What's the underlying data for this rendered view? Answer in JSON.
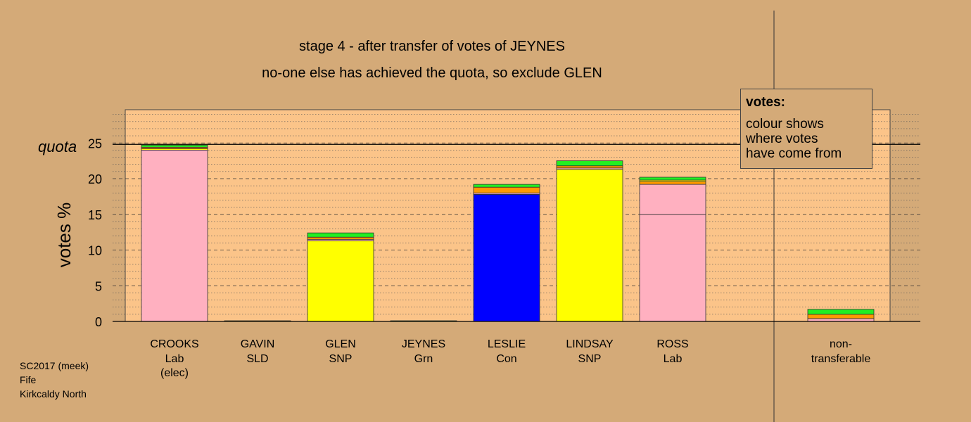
{
  "chart_data": {
    "type": "bar",
    "stacked": true,
    "title": "stage 4 - after transfer of votes of JEYNES",
    "subtitle": "no-one else has achieved the quota, so exclude GLEN",
    "ylabel": "votes %",
    "ylim": [
      0,
      30
    ],
    "yticks": [
      0,
      5,
      10,
      15,
      20,
      25
    ],
    "quota": 24.8,
    "quota_label": "quota",
    "candidates": [
      {
        "name": "CROOKS",
        "party": "Lab",
        "note": "(elec)",
        "segments": [
          {
            "color": "#ffb0c0",
            "value": 24.0
          },
          {
            "color": "#ffff00",
            "value": 0.2
          },
          {
            "color": "#ff9900",
            "value": 0.2
          },
          {
            "color": "#22ee22",
            "value": 0.3
          }
        ]
      },
      {
        "name": "GAVIN",
        "party": "SLD",
        "note": "",
        "segments": [
          {
            "color": "#ffff00",
            "value": 0.1
          }
        ]
      },
      {
        "name": "GLEN",
        "party": "SNP",
        "note": "",
        "segments": [
          {
            "color": "#ffff00",
            "value": 11.3
          },
          {
            "color": "#ffb0c0",
            "value": 0.2
          },
          {
            "color": "#ff9900",
            "value": 0.3
          },
          {
            "color": "#22ee22",
            "value": 0.6
          }
        ]
      },
      {
        "name": "JEYNES",
        "party": "Grn",
        "note": "",
        "segments": [
          {
            "color": "#22ee22",
            "value": 0.1
          }
        ]
      },
      {
        "name": "LESLIE",
        "party": "Con",
        "note": "",
        "segments": [
          {
            "color": "#0000ff",
            "value": 17.8
          },
          {
            "color": "#ffb0c0",
            "value": 0.2
          },
          {
            "color": "#ff9900",
            "value": 0.8
          },
          {
            "color": "#22ee22",
            "value": 0.4
          }
        ]
      },
      {
        "name": "LINDSAY",
        "party": "SNP",
        "note": "",
        "segments": [
          {
            "color": "#ffff00",
            "value": 21.3
          },
          {
            "color": "#ffb0c0",
            "value": 0.2
          },
          {
            "color": "#ff9900",
            "value": 0.3
          },
          {
            "color": "#22ee22",
            "value": 0.7
          }
        ]
      },
      {
        "name": "ROSS",
        "party": "Lab",
        "note": "",
        "segments": [
          {
            "color": "#ffb0c0",
            "value": 15.0
          },
          {
            "color": "#ffb0c0",
            "value": 4.2
          },
          {
            "color": "#ff9900",
            "value": 0.4
          },
          {
            "color": "#ffff00",
            "value": 0.2
          },
          {
            "color": "#22ee22",
            "value": 0.4
          }
        ]
      }
    ],
    "nontransferable": {
      "label_line1": "non-",
      "label_line2": "transferable",
      "segments": [
        {
          "color": "#ffb0c0",
          "value": 0.4
        },
        {
          "color": "#ff9900",
          "value": 0.6
        },
        {
          "color": "#22ee22",
          "value": 0.7
        }
      ]
    },
    "legend": {
      "title": "votes:",
      "lines": [
        "colour shows",
        "where votes",
        "have come from"
      ]
    }
  },
  "footer": {
    "line1": "SC2017 (meek)",
    "line2": "Fife",
    "line3": "Kirkcaldy North"
  }
}
